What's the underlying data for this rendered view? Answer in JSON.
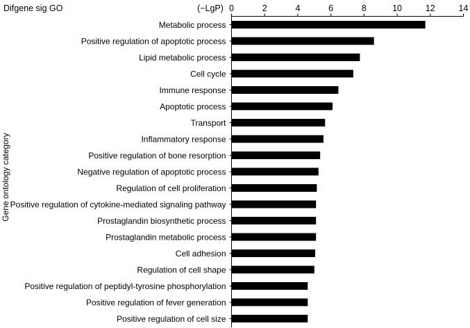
{
  "chart_data": {
    "type": "bar",
    "orientation": "horizontal",
    "title": "Difgene sig GO",
    "xlabel": "(−LgP)",
    "ylabel": "Gene ontology category",
    "xlim": [
      0,
      14
    ],
    "xticks": [
      "0",
      "2",
      "4",
      "6",
      "8",
      "10",
      "12",
      "14"
    ],
    "axis_position": "top",
    "grid": false,
    "bar_color": "#000000",
    "categories": [
      "Metabolic process",
      "Positive regulation of apoptotic process",
      "Lipid metabolic process",
      "Cell cycle",
      "Immune response",
      "Apoptotic process",
      "Transport",
      "Inflammatory response",
      "Positive regulation of bone resorption",
      "Negative regulation of apoptotic process",
      "Regulation of cell proliferation",
      "Positive regulation of cytokine-mediated signaling pathway",
      "Prostaglandin biosynthetic process",
      "Prostaglandin metabolic process",
      "Cell adhesion",
      "Regulation of cell shape",
      "Positive regulation of peptidyl-tyrosine phosphorylation",
      "Positive regulation of fever generation",
      "Positive regulation of cell size"
    ],
    "values": [
      11.7,
      8.6,
      7.75,
      7.35,
      6.45,
      6.1,
      5.65,
      5.55,
      5.35,
      5.25,
      5.15,
      5.1,
      5.1,
      5.1,
      5.05,
      5.0,
      4.6,
      4.6,
      4.6
    ]
  }
}
